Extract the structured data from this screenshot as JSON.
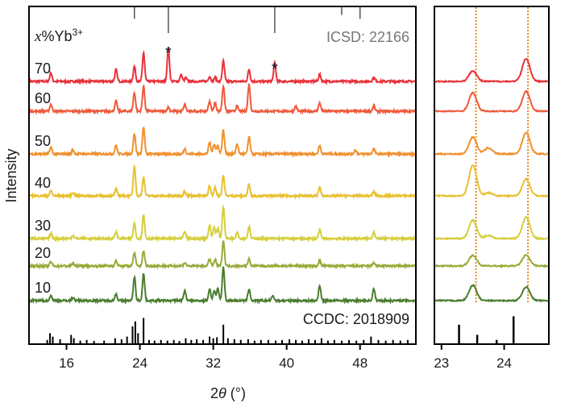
{
  "chart_data": [
    {
      "type": "line",
      "panel": "main",
      "xlabel": "2θ (°)",
      "ylabel": "Intensity",
      "xlim": [
        12,
        54
      ],
      "x_ticks": [
        16,
        24,
        32,
        40,
        48
      ],
      "legend_title": "x%Yb3+",
      "reference_top": {
        "label": "ICSD: 22166",
        "color": "#777777",
        "peaks": [
          {
            "x": 23.4,
            "h": 0.45
          },
          {
            "x": 27.1,
            "h": 1.0
          },
          {
            "x": 38.7,
            "h": 1.0
          },
          {
            "x": 46.0,
            "h": 0.3
          },
          {
            "x": 48.0,
            "h": 0.45
          }
        ]
      },
      "reference_bottom": {
        "label": "CCDC: 2018909",
        "color": "#000000",
        "peaks": [
          {
            "x": 13.9,
            "h": 0.1
          },
          {
            "x": 14.2,
            "h": 0.3
          },
          {
            "x": 14.5,
            "h": 0.2
          },
          {
            "x": 15.3,
            "h": 0.12
          },
          {
            "x": 16.5,
            "h": 0.25
          },
          {
            "x": 16.8,
            "h": 0.15
          },
          {
            "x": 17.5,
            "h": 0.08
          },
          {
            "x": 18.2,
            "h": 0.1
          },
          {
            "x": 19.0,
            "h": 0.07
          },
          {
            "x": 20.1,
            "h": 0.08
          },
          {
            "x": 21.3,
            "h": 0.15
          },
          {
            "x": 22.0,
            "h": 0.12
          },
          {
            "x": 22.6,
            "h": 0.2
          },
          {
            "x": 23.2,
            "h": 0.5
          },
          {
            "x": 23.5,
            "h": 0.65
          },
          {
            "x": 23.8,
            "h": 0.3
          },
          {
            "x": 24.4,
            "h": 0.75
          },
          {
            "x": 25.0,
            "h": 0.1
          },
          {
            "x": 25.6,
            "h": 0.08
          },
          {
            "x": 26.3,
            "h": 0.1
          },
          {
            "x": 27.0,
            "h": 0.08
          },
          {
            "x": 27.7,
            "h": 0.1
          },
          {
            "x": 28.3,
            "h": 0.07
          },
          {
            "x": 29.0,
            "h": 0.15
          },
          {
            "x": 29.6,
            "h": 0.1
          },
          {
            "x": 30.2,
            "h": 0.12
          },
          {
            "x": 30.9,
            "h": 0.1
          },
          {
            "x": 31.6,
            "h": 0.2
          },
          {
            "x": 32.0,
            "h": 0.15
          },
          {
            "x": 32.4,
            "h": 0.18
          },
          {
            "x": 33.1,
            "h": 0.55
          },
          {
            "x": 33.6,
            "h": 0.15
          },
          {
            "x": 34.3,
            "h": 0.12
          },
          {
            "x": 35.0,
            "h": 0.1
          },
          {
            "x": 35.8,
            "h": 0.12
          },
          {
            "x": 36.5,
            "h": 0.08
          },
          {
            "x": 37.2,
            "h": 0.1
          },
          {
            "x": 38.0,
            "h": 0.1
          },
          {
            "x": 38.8,
            "h": 0.08
          },
          {
            "x": 39.5,
            "h": 0.1
          },
          {
            "x": 40.3,
            "h": 0.12
          },
          {
            "x": 41.0,
            "h": 0.1
          },
          {
            "x": 41.7,
            "h": 0.08
          },
          {
            "x": 42.4,
            "h": 0.12
          },
          {
            "x": 43.1,
            "h": 0.1
          },
          {
            "x": 43.8,
            "h": 0.15
          },
          {
            "x": 44.5,
            "h": 0.08
          },
          {
            "x": 45.2,
            "h": 0.1
          },
          {
            "x": 46.0,
            "h": 0.08
          },
          {
            "x": 46.8,
            "h": 0.1
          },
          {
            "x": 47.6,
            "h": 0.08
          },
          {
            "x": 48.4,
            "h": 0.1
          },
          {
            "x": 49.2,
            "h": 0.2
          },
          {
            "x": 50.0,
            "h": 0.1
          },
          {
            "x": 50.8,
            "h": 0.08
          },
          {
            "x": 51.6,
            "h": 0.1
          },
          {
            "x": 52.4,
            "h": 0.08
          },
          {
            "x": 53.2,
            "h": 0.1
          }
        ]
      },
      "asterisk_peaks": [
        27.1,
        38.7
      ],
      "series": [
        {
          "name": "70",
          "color": "#e8323a",
          "peaks": [
            [
              14.3,
              0.25
            ],
            [
              21.4,
              0.35
            ],
            [
              23.4,
              0.45
            ],
            [
              24.4,
              0.85
            ],
            [
              27.1,
              1.0
            ],
            [
              28.5,
              0.2
            ],
            [
              29.0,
              0.1
            ],
            [
              31.6,
              0.15
            ],
            [
              32.2,
              0.12
            ],
            [
              33.1,
              0.6
            ],
            [
              35.9,
              0.35
            ],
            [
              38.7,
              0.55
            ],
            [
              43.6,
              0.2
            ],
            [
              49.5,
              0.12
            ]
          ]
        },
        {
          "name": "60",
          "color": "#ee5a3c",
          "peaks": [
            [
              14.3,
              0.2
            ],
            [
              21.4,
              0.3
            ],
            [
              23.4,
              0.55
            ],
            [
              24.4,
              0.75
            ],
            [
              27.1,
              0.12
            ],
            [
              28.9,
              0.2
            ],
            [
              31.6,
              0.3
            ],
            [
              32.2,
              0.25
            ],
            [
              33.1,
              0.75
            ],
            [
              34.6,
              0.15
            ],
            [
              35.9,
              0.8
            ],
            [
              41.0,
              0.15
            ],
            [
              43.6,
              0.25
            ],
            [
              49.5,
              0.15
            ]
          ]
        },
        {
          "name": "50",
          "color": "#f0902e",
          "peaks": [
            [
              14.3,
              0.2
            ],
            [
              16.7,
              0.12
            ],
            [
              21.4,
              0.25
            ],
            [
              23.4,
              0.6
            ],
            [
              24.4,
              0.8
            ],
            [
              28.9,
              0.15
            ],
            [
              31.6,
              0.35
            ],
            [
              32.1,
              0.3
            ],
            [
              32.5,
              0.25
            ],
            [
              33.1,
              0.7
            ],
            [
              34.6,
              0.3
            ],
            [
              35.9,
              0.5
            ],
            [
              43.6,
              0.25
            ],
            [
              47.5,
              0.12
            ],
            [
              49.5,
              0.15
            ]
          ]
        },
        {
          "name": "40",
          "color": "#e8c030",
          "peaks": [
            [
              14.3,
              0.15
            ],
            [
              16.7,
              0.1
            ],
            [
              21.4,
              0.2
            ],
            [
              23.4,
              0.9
            ],
            [
              24.4,
              0.55
            ],
            [
              28.9,
              0.15
            ],
            [
              31.6,
              0.3
            ],
            [
              32.2,
              0.25
            ],
            [
              33.1,
              0.6
            ],
            [
              35.9,
              0.35
            ],
            [
              43.6,
              0.25
            ],
            [
              49.5,
              0.12
            ]
          ]
        },
        {
          "name": "30",
          "color": "#d5ce3c",
          "peaks": [
            [
              14.3,
              0.15
            ],
            [
              16.7,
              0.1
            ],
            [
              21.4,
              0.2
            ],
            [
              23.4,
              0.45
            ],
            [
              24.4,
              0.7
            ],
            [
              28.9,
              0.2
            ],
            [
              31.6,
              0.4
            ],
            [
              32.1,
              0.35
            ],
            [
              32.5,
              0.3
            ],
            [
              33.1,
              0.95
            ],
            [
              34.6,
              0.2
            ],
            [
              35.9,
              0.35
            ],
            [
              43.6,
              0.25
            ],
            [
              49.5,
              0.2
            ]
          ]
        },
        {
          "name": "20",
          "color": "#98aa38",
          "peaks": [
            [
              14.3,
              0.12
            ],
            [
              16.7,
              0.08
            ],
            [
              21.4,
              0.15
            ],
            [
              23.4,
              0.4
            ],
            [
              24.4,
              0.45
            ],
            [
              28.9,
              0.1
            ],
            [
              31.6,
              0.2
            ],
            [
              32.2,
              0.18
            ],
            [
              33.1,
              0.75
            ],
            [
              35.9,
              0.2
            ],
            [
              43.6,
              0.15
            ],
            [
              49.5,
              0.1
            ]
          ]
        },
        {
          "name": "10",
          "color": "#4a7d2e",
          "peaks": [
            [
              14.3,
              0.15
            ],
            [
              16.7,
              0.1
            ],
            [
              21.4,
              0.2
            ],
            [
              23.4,
              0.7
            ],
            [
              24.4,
              0.8
            ],
            [
              28.9,
              0.3
            ],
            [
              31.6,
              0.35
            ],
            [
              32.1,
              0.3
            ],
            [
              32.5,
              0.35
            ],
            [
              33.1,
              1.0
            ],
            [
              35.9,
              0.35
            ],
            [
              38.5,
              0.15
            ],
            [
              43.6,
              0.45
            ],
            [
              49.5,
              0.35
            ]
          ]
        }
      ]
    },
    {
      "type": "line",
      "panel": "inset",
      "xlim": [
        22.9,
        24.7
      ],
      "x_ticks": [
        23,
        24
      ],
      "guide_lines": {
        "color": "#e88a1a",
        "x": [
          23.55,
          24.38
        ]
      },
      "reference_bottom": {
        "color": "#000000",
        "peaks": [
          {
            "x": 23.28,
            "h": 0.55
          },
          {
            "x": 23.57,
            "h": 0.25
          },
          {
            "x": 23.88,
            "h": 0.1
          },
          {
            "x": 24.15,
            "h": 0.8
          }
        ]
      },
      "series": [
        {
          "name": "70",
          "color": "#e8323a",
          "peaks": [
            [
              23.5,
              0.35
            ],
            [
              24.35,
              0.75
            ]
          ]
        },
        {
          "name": "60",
          "color": "#ee5a3c",
          "peaks": [
            [
              23.5,
              0.6
            ],
            [
              24.35,
              0.65
            ]
          ]
        },
        {
          "name": "50",
          "color": "#f0902e",
          "peaks": [
            [
              23.5,
              0.55
            ],
            [
              23.75,
              0.2
            ],
            [
              24.35,
              0.7
            ]
          ]
        },
        {
          "name": "40",
          "color": "#e8c030",
          "peaks": [
            [
              23.5,
              1.0
            ],
            [
              23.75,
              0.1
            ],
            [
              24.35,
              0.55
            ]
          ]
        },
        {
          "name": "30",
          "color": "#d5ce3c",
          "peaks": [
            [
              23.5,
              0.6
            ],
            [
              23.75,
              0.1
            ],
            [
              24.35,
              0.7
            ]
          ]
        },
        {
          "name": "20",
          "color": "#98aa38",
          "peaks": [
            [
              23.5,
              0.35
            ],
            [
              24.35,
              0.35
            ]
          ]
        },
        {
          "name": "10",
          "color": "#4a7d2e",
          "peaks": [
            [
              23.5,
              0.5
            ],
            [
              24.35,
              0.45
            ]
          ]
        }
      ]
    }
  ]
}
